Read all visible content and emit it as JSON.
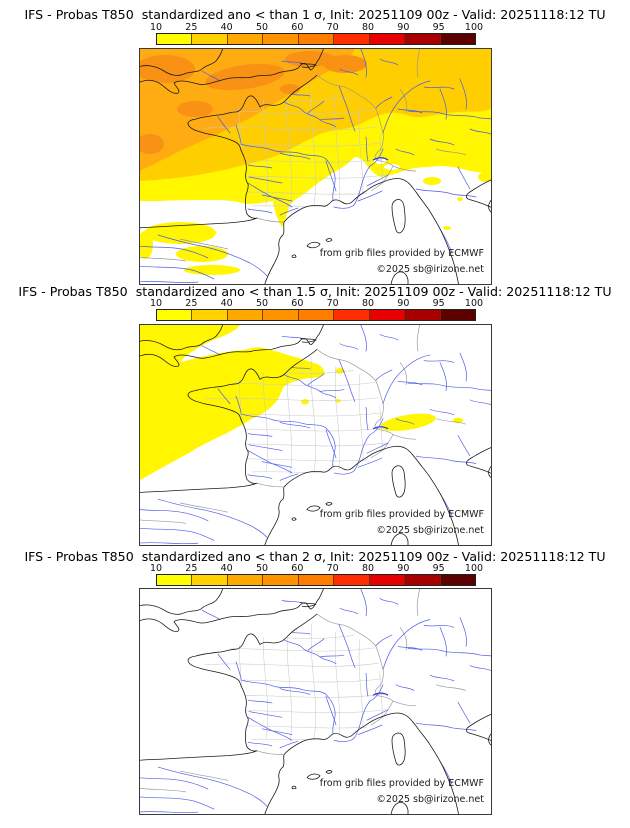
{
  "panels": [
    {
      "title": "IFS - Probas T850  standardized ano < than 1 σ, Init: 20251109 00z - Valid: 20251118:12 TU"
    },
    {
      "title": "IFS - Probas T850  standardized ano < than 1.5 σ, Init: 20251109 00z - Valid: 20251118:12 TU"
    },
    {
      "title": "IFS - Probas T850  standardized ano < than 2 σ, Init: 20251109 00z - Valid: 20251118:12 TU"
    }
  ],
  "colorbar": {
    "ticks": [
      "10",
      "25",
      "40",
      "50",
      "60",
      "70",
      "80",
      "90",
      "95",
      "100"
    ],
    "colors": [
      "#FFFF00",
      "#FFD200",
      "#FFA800",
      "#FF9400",
      "#FF7E00",
      "#FF2D00",
      "#E60000",
      "#A80000",
      "#5C0000"
    ]
  },
  "map": {
    "credit": "from grib files provided by ECMWF",
    "copyright": "©2025 sb@irizone.net",
    "fill_colors": {
      "yellow": "#FFF600",
      "gold": "#FFCE00",
      "orange": "#FFAC12",
      "orange_dark": "#F89114",
      "white": "#FFFFFF"
    },
    "line_colors": {
      "coast": "#1a1a1a",
      "border": "#9a9a9a",
      "department": "#c9c9c9",
      "river": "#4d5ce6",
      "lake": "#2b3ccc"
    }
  },
  "chart_data": [
    {
      "type": "heatmap",
      "title": "IFS - Probas T850 standardized ano < than 1 σ",
      "init": "20251109 00z",
      "valid": "20251118:12 TU",
      "legend_position": "top",
      "scale_percent": [
        10,
        25,
        40,
        50,
        60,
        70,
        80,
        90,
        95,
        100
      ],
      "scale_colors": [
        "#FFFF00",
        "#FFD200",
        "#FFA800",
        "#FF9400",
        "#FF7E00",
        "#FF2D00",
        "#E60000",
        "#A80000",
        "#5C0000"
      ],
      "regions": [
        {
          "area": "English Channel / S England / far NW Atlantic",
          "probability_percent": "50-60"
        },
        {
          "area": "NW France, Brittany, Normandy",
          "probability_percent": "40-50"
        },
        {
          "area": "N and central France, Benelux, Germany",
          "probability_percent": "25-40"
        },
        {
          "area": "S France, Alps, NE Spain coast",
          "probability_percent": "10-25"
        },
        {
          "area": "Spain interior, Mediterranean, N Italy",
          "probability_percent": "<10 with scattered 10-25 patches"
        }
      ]
    },
    {
      "type": "heatmap",
      "title": "IFS - Probas T850 standardized ano < than 1.5 σ",
      "init": "20251109 00z",
      "valid": "20251118:12 TU",
      "legend_position": "top",
      "scale_percent": [
        10,
        25,
        40,
        50,
        60,
        70,
        80,
        90,
        95,
        100
      ],
      "scale_colors": [
        "#FFFF00",
        "#FFD200",
        "#FFA800",
        "#FF9400",
        "#FF7E00",
        "#FF2D00",
        "#E60000",
        "#A80000",
        "#5C0000"
      ],
      "regions": [
        {
          "area": "NW France, Channel, near Atlantic, Paris basin",
          "probability_percent": "10-25"
        },
        {
          "area": "small patch N Alps / Switzerland border",
          "probability_percent": "10-25"
        },
        {
          "area": "rest of domain",
          "probability_percent": "<10"
        }
      ]
    },
    {
      "type": "heatmap",
      "title": "IFS - Probas T850 standardized ano < than 2 σ",
      "init": "20251109 00z",
      "valid": "20251118:12 TU",
      "legend_position": "top",
      "scale_percent": [
        10,
        25,
        40,
        50,
        60,
        70,
        80,
        90,
        95,
        100
      ],
      "scale_colors": [
        "#FFFF00",
        "#FFD200",
        "#FFA800",
        "#FF9400",
        "#FF7E00",
        "#FF2D00",
        "#E60000",
        "#A80000",
        "#5C0000"
      ],
      "regions": [
        {
          "area": "entire domain",
          "probability_percent": "<10"
        }
      ]
    }
  ]
}
